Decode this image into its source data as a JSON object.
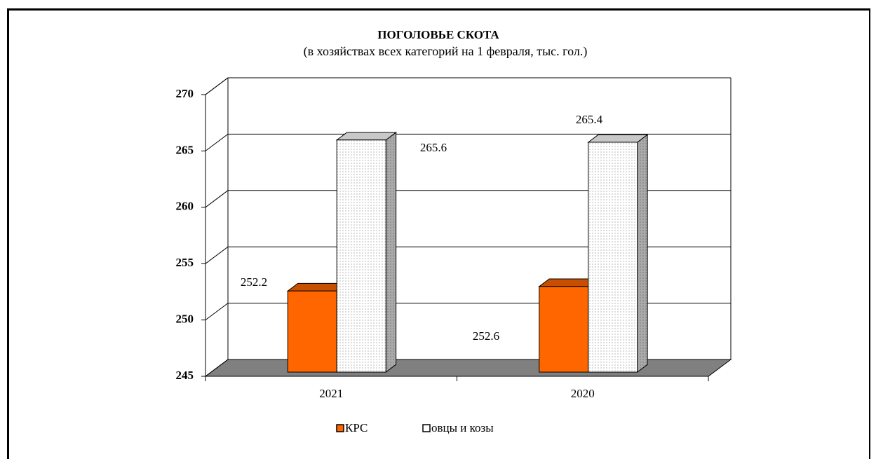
{
  "chart_data": {
    "type": "bar3d",
    "title": "ПОГОЛОВЬЕ СКОТА",
    "subtitle": "(в хозяйствах всех категорий на 1 февраля, тыс. гол.)",
    "categories": [
      "2021",
      "2020"
    ],
    "series": [
      {
        "name": "КРС",
        "color": "#ff6600",
        "values": [
          252.2,
          252.6
        ]
      },
      {
        "name": "овцы и козы",
        "color": "#ffffff",
        "values": [
          265.6,
          265.4
        ]
      }
    ],
    "ylim": [
      245,
      270
    ],
    "yticks": [
      245,
      250,
      255,
      260,
      265,
      270
    ],
    "grid": true,
    "legend": "bottom"
  }
}
